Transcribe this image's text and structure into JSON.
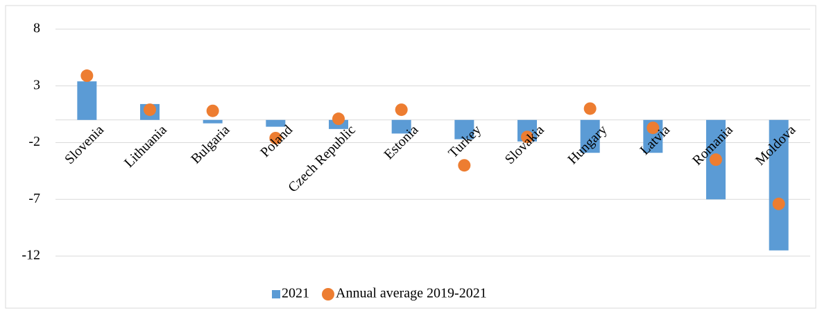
{
  "chart_data": {
    "type": "bar_scatter",
    "categories": [
      "Slovenia",
      "Lithuania",
      "Bulgaria",
      "Poland",
      "Czech Republic",
      "Estonia",
      "Turkey",
      "Slovakia",
      "Hungary",
      "Latvia",
      "Romania",
      "Moldova"
    ],
    "series": [
      {
        "name": "2021",
        "type": "bar",
        "color": "#5b9bd5",
        "values": [
          3.4,
          1.4,
          -0.3,
          -0.6,
          -0.8,
          -1.2,
          -1.7,
          -1.9,
          -2.9,
          -2.9,
          -7.0,
          -11.5
        ]
      },
      {
        "name": "Annual average 2019-2021",
        "type": "scatter",
        "color": "#ed7d31",
        "values": [
          3.9,
          0.9,
          0.8,
          -1.6,
          0.1,
          0.9,
          -4.0,
          -1.5,
          1.0,
          -0.7,
          -3.5,
          -7.4
        ]
      }
    ],
    "ylim": [
      -12,
      8
    ],
    "yticks": [
      8,
      3,
      -2,
      -7,
      -12
    ],
    "grid": true,
    "legend": "bottom"
  }
}
